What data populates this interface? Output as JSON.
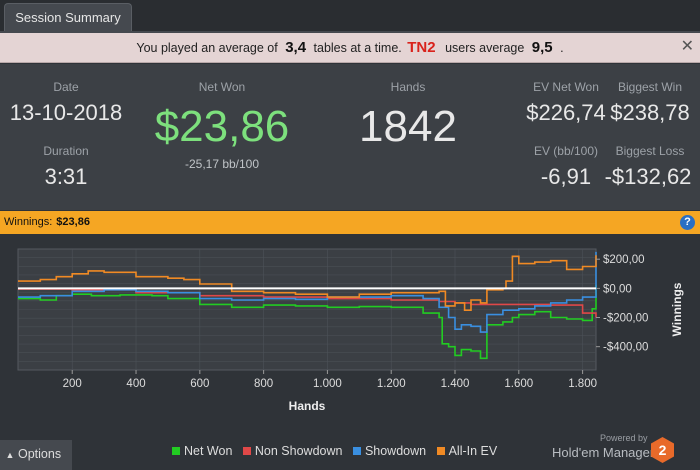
{
  "tab": {
    "label": "Session Summary"
  },
  "banner": {
    "prefix": "You played an average of",
    "avg_tables": "3,4",
    "middle": "tables at a time.",
    "site": "TN2",
    "users_text": "users average",
    "users_avg": "9,5",
    "suffix": ".",
    "close": "✕"
  },
  "stats": {
    "date_label": "Date",
    "date": "13-10-2018",
    "duration_label": "Duration",
    "duration": "3:31",
    "netwon_label": "Net Won",
    "netwon": "$23,86",
    "bb100": "-25,17 bb/100",
    "hands_label": "Hands",
    "hands": "1842",
    "ev_net_won_label": "EV Net Won",
    "ev_net_won": "$226,74",
    "biggest_win_label": "Biggest Win",
    "biggest_win": "$238,78",
    "ev_bb_label": "EV (bb/100)",
    "ev_bb": "-6,91",
    "biggest_loss_label": "Biggest Loss",
    "biggest_loss": "-$132,62"
  },
  "winnings_bar": {
    "label": "Winnings:",
    "value": "$23,86",
    "help": "?"
  },
  "options": {
    "label": "Options",
    "icon": "chevron-up-icon"
  },
  "branding": {
    "powered": "Powered by",
    "name": "Hold'em Manager",
    "logo_text": "2"
  },
  "colors": {
    "net_won": "#22cc22",
    "non_showdown": "#e04848",
    "showdown": "#3a8fe0",
    "all_in_ev": "#f08a24",
    "accent": "#f5a623"
  },
  "chart_data": {
    "type": "line",
    "xlabel": "Hands",
    "ylabel": "Winnings",
    "xlim": [
      30,
      1842
    ],
    "ylim": [
      -560,
      270
    ],
    "x_ticks": [
      200,
      400,
      600,
      800,
      1000,
      1200,
      1400,
      1600,
      1800
    ],
    "x_tick_labels": [
      "200",
      "400",
      "600",
      "800",
      "1.000",
      "1.200",
      "1.400",
      "1.600",
      "1.800"
    ],
    "y_ticks": [
      200,
      0,
      -200,
      -400
    ],
    "y_tick_labels": [
      "$200,00",
      "$0,00",
      "-$200,00",
      "-$400,00"
    ],
    "grid": true,
    "legend_position": "bottom",
    "series": [
      {
        "name": "Net Won",
        "color": "#22cc22",
        "x": [
          30,
          100,
          150,
          200,
          260,
          350,
          450,
          500,
          600,
          700,
          800,
          900,
          1000,
          1100,
          1200,
          1300,
          1350,
          1360,
          1380,
          1400,
          1420,
          1450,
          1480,
          1500,
          1550,
          1580,
          1600,
          1650,
          1700,
          1750,
          1800,
          1830,
          1842
        ],
        "y": [
          -70,
          -80,
          -50,
          -40,
          -50,
          -45,
          -50,
          -70,
          -110,
          -130,
          -115,
          -120,
          -130,
          -125,
          -130,
          -170,
          -200,
          -380,
          -400,
          -460,
          -420,
          -430,
          -480,
          -250,
          -230,
          -200,
          -180,
          -160,
          -200,
          -210,
          -220,
          -140,
          24
        ]
      },
      {
        "name": "Non Showdown",
        "color": "#e04848",
        "x": [
          30,
          200,
          400,
          600,
          800,
          1000,
          1200,
          1350,
          1400,
          1450,
          1500,
          1550,
          1600,
          1700,
          1800,
          1842
        ],
        "y": [
          -5,
          -10,
          -30,
          -50,
          -60,
          -70,
          -80,
          -90,
          -100,
          -110,
          -110,
          -110,
          -110,
          -115,
          -170,
          -200
        ]
      },
      {
        "name": "Showdown",
        "color": "#3a8fe0",
        "x": [
          30,
          100,
          200,
          300,
          400,
          500,
          600,
          700,
          800,
          900,
          1000,
          1100,
          1200,
          1300,
          1350,
          1380,
          1400,
          1420,
          1450,
          1480,
          1500,
          1550,
          1600,
          1650,
          1700,
          1750,
          1800,
          1842
        ],
        "y": [
          -60,
          -50,
          -20,
          -10,
          -20,
          -30,
          -70,
          -80,
          -70,
          -75,
          -60,
          -60,
          -50,
          -70,
          -130,
          -200,
          -280,
          -250,
          -260,
          -300,
          -180,
          -150,
          -140,
          -120,
          -100,
          -80,
          -60,
          250
        ]
      },
      {
        "name": "All-In EV",
        "color": "#f08a24",
        "x": [
          30,
          100,
          150,
          200,
          250,
          300,
          400,
          500,
          550,
          600,
          700,
          800,
          900,
          1000,
          1100,
          1200,
          1300,
          1350,
          1370,
          1400,
          1430,
          1450,
          1480,
          1500,
          1550,
          1560,
          1580,
          1600,
          1650,
          1700,
          1750,
          1800,
          1842
        ],
        "y": [
          50,
          60,
          80,
          100,
          120,
          110,
          80,
          70,
          60,
          30,
          -20,
          -30,
          -40,
          -60,
          -40,
          -30,
          -30,
          -20,
          -120,
          -100,
          -150,
          -80,
          -100,
          -10,
          0,
          50,
          220,
          170,
          180,
          190,
          130,
          150,
          227
        ]
      }
    ]
  }
}
